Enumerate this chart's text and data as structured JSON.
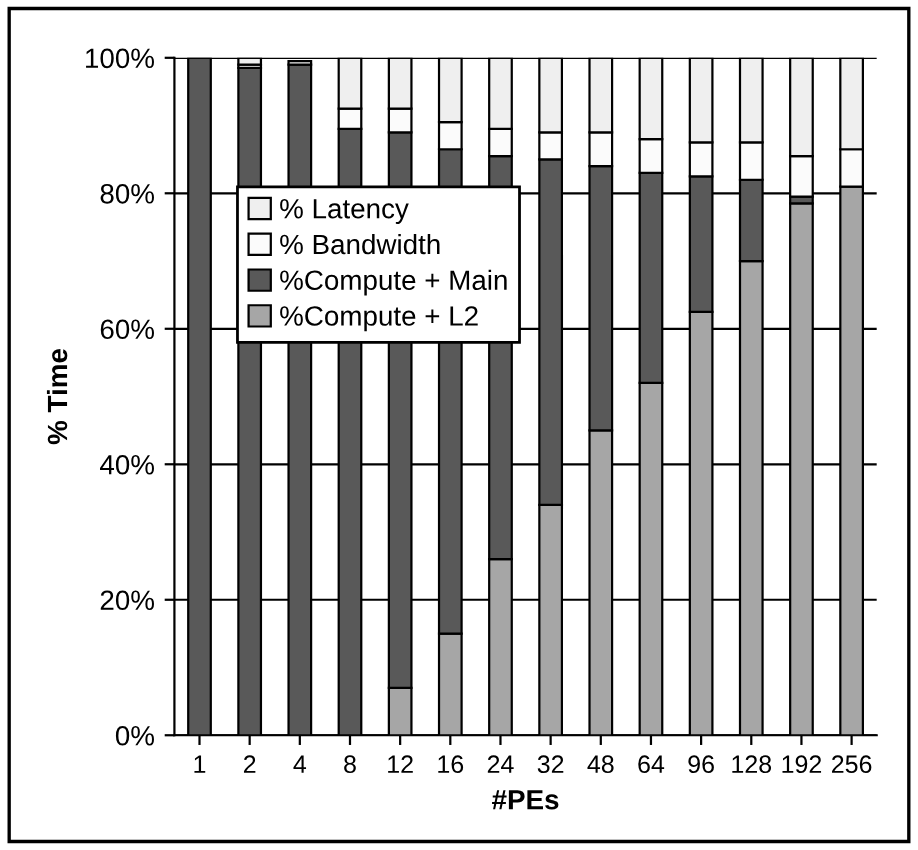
{
  "chart_data": {
    "type": "bar",
    "stacked": true,
    "xlabel": "#PEs",
    "ylabel": "% Time",
    "categories": [
      "1",
      "2",
      "4",
      "8",
      "12",
      "16",
      "24",
      "32",
      "48",
      "64",
      "96",
      "128",
      "192",
      "256"
    ],
    "series": [
      {
        "name": "%Compute + L2",
        "color": "#a6a6a6",
        "values": [
          0,
          0,
          0,
          0,
          7,
          15,
          26,
          34,
          45,
          52,
          62.5,
          70,
          78.5,
          81
        ]
      },
      {
        "name": "%Compute + Main",
        "color": "#595959",
        "values": [
          100,
          98.5,
          99,
          89.5,
          82,
          71.5,
          59.5,
          51,
          39,
          31,
          20,
          12,
          1,
          0
        ]
      },
      {
        "name": "% Bandwidth",
        "color": "#fbfbfb",
        "values": [
          0,
          0.5,
          null,
          3,
          3.5,
          4,
          4,
          4,
          5,
          5,
          5,
          5.5,
          6,
          5.5
        ]
      },
      {
        "name": "% Latency",
        "color": "#efefef",
        "values": [
          0,
          1,
          0.5,
          7.5,
          7.5,
          9.5,
          10.5,
          11,
          11,
          12,
          12.5,
          12.5,
          14.5,
          13.5
        ]
      }
    ],
    "ylim": [
      0,
      100
    ],
    "yticks": [
      {
        "value": 0,
        "label": "0%"
      },
      {
        "value": 20,
        "label": "20%"
      },
      {
        "value": 40,
        "label": "40%"
      },
      {
        "value": 60,
        "label": "60%"
      },
      {
        "value": 80,
        "label": "80%"
      },
      {
        "value": 100,
        "label": "100%"
      }
    ],
    "grid": "y",
    "legend": "top left"
  }
}
